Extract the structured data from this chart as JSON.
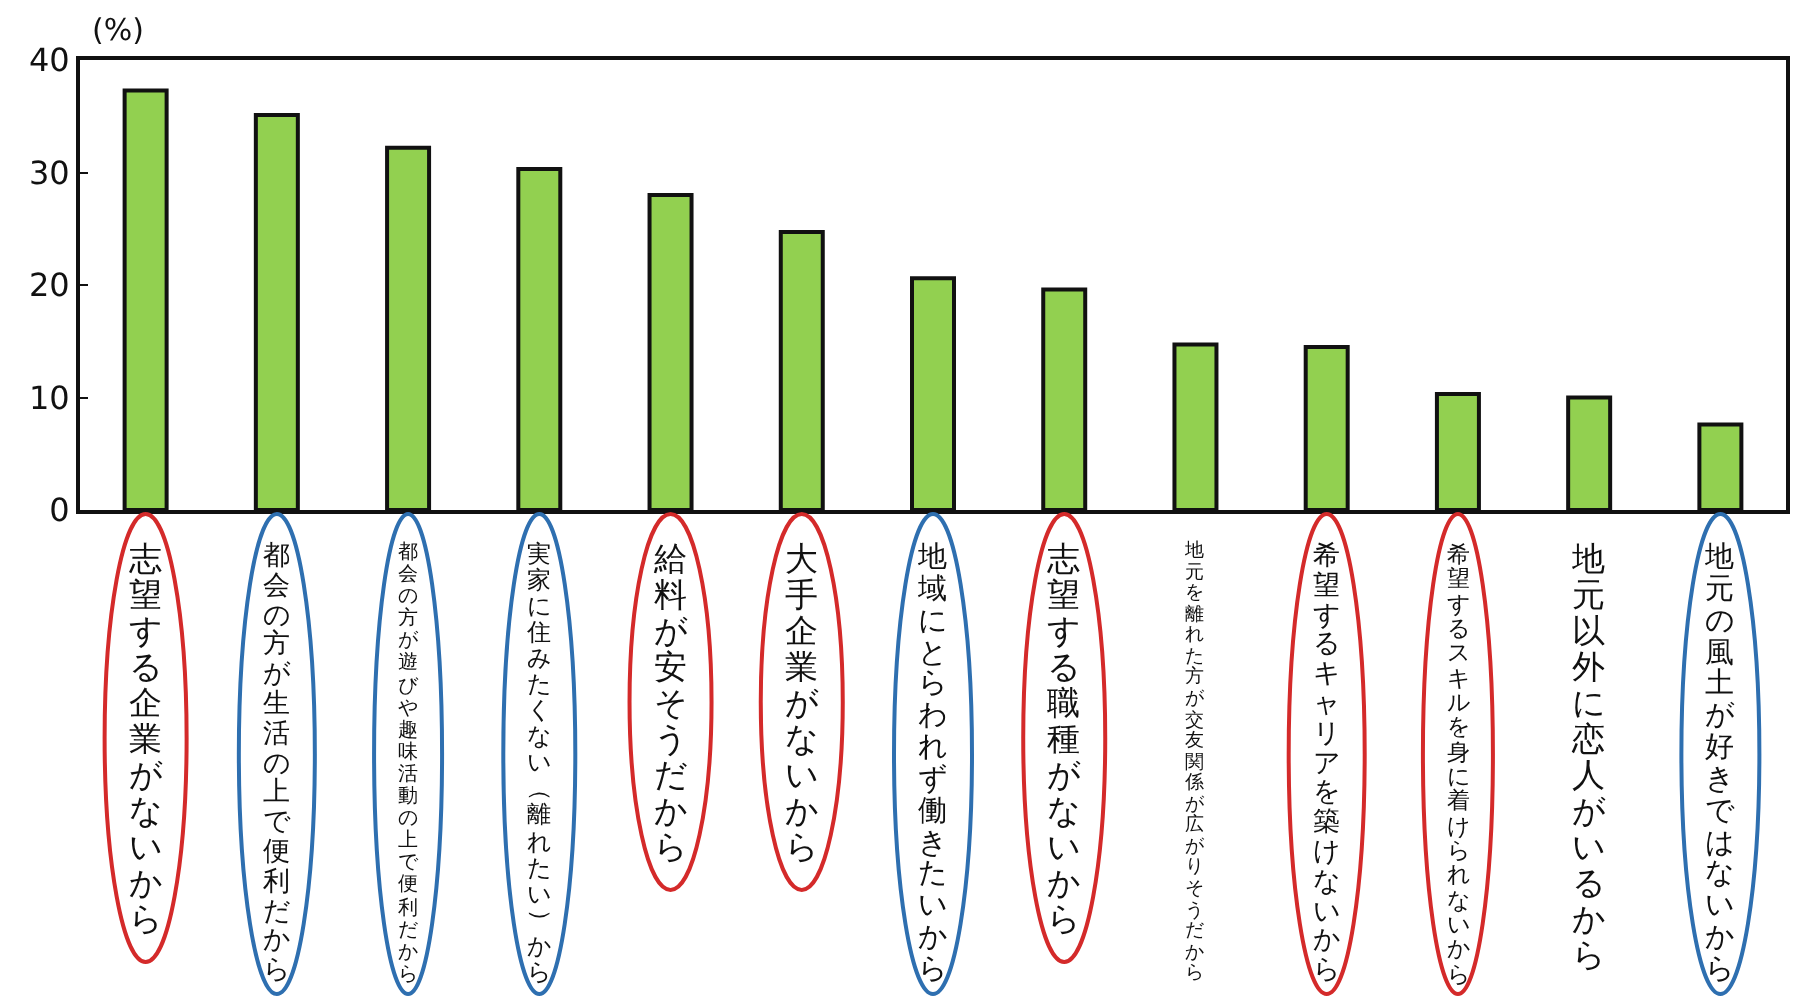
{
  "chart_data": {
    "type": "bar",
    "ylabel": "(%)",
    "categories": [
      "志望する企業がないから",
      "都会の方が生活の上で便利だから",
      "都会の方が遊びや趣味活動の上で便利だから",
      "実家に住みたくない（離れたい）から",
      "給料が安そうだから",
      "大手企業がないから",
      "地域にとらわれず働きたいから",
      "志望する職種がないから",
      "地元を離れた方が交友関係が広がりそうだから",
      "希望するキャリアを築けないから",
      "希望するスキルを身に着けられないから",
      "地元以外に恋人がいるから",
      "地元の風土が好きではないから"
    ],
    "values": [
      37.3,
      35.1,
      32.2,
      30.3,
      28.0,
      24.7,
      20.6,
      19.6,
      14.7,
      14.5,
      10.3,
      10.0,
      7.6
    ],
    "color": "#92d050",
    "ylim": [
      0,
      40
    ],
    "yticks": [
      0,
      10,
      20,
      30,
      40
    ],
    "grid": false,
    "legend": false
  }
}
